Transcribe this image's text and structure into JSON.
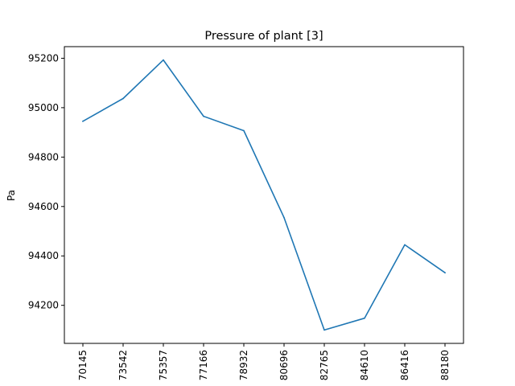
{
  "chart_data": {
    "type": "line",
    "title": "Pressure of plant [3]",
    "xlabel": "",
    "ylabel": "Pa",
    "categories": [
      "70145",
      "73542",
      "75357",
      "77166",
      "78932",
      "80696",
      "82765",
      "84610",
      "86416",
      "88180"
    ],
    "series": [
      {
        "values": [
          94945,
          95037,
          95193,
          94965,
          94907,
          94555,
          94100,
          94148,
          94445,
          94332
        ]
      }
    ],
    "yticks": [
      94200,
      94400,
      94600,
      94800,
      95000,
      95200
    ],
    "ylim": [
      94046,
      95247
    ],
    "grid": false,
    "line_color": "#1f77b4"
  }
}
